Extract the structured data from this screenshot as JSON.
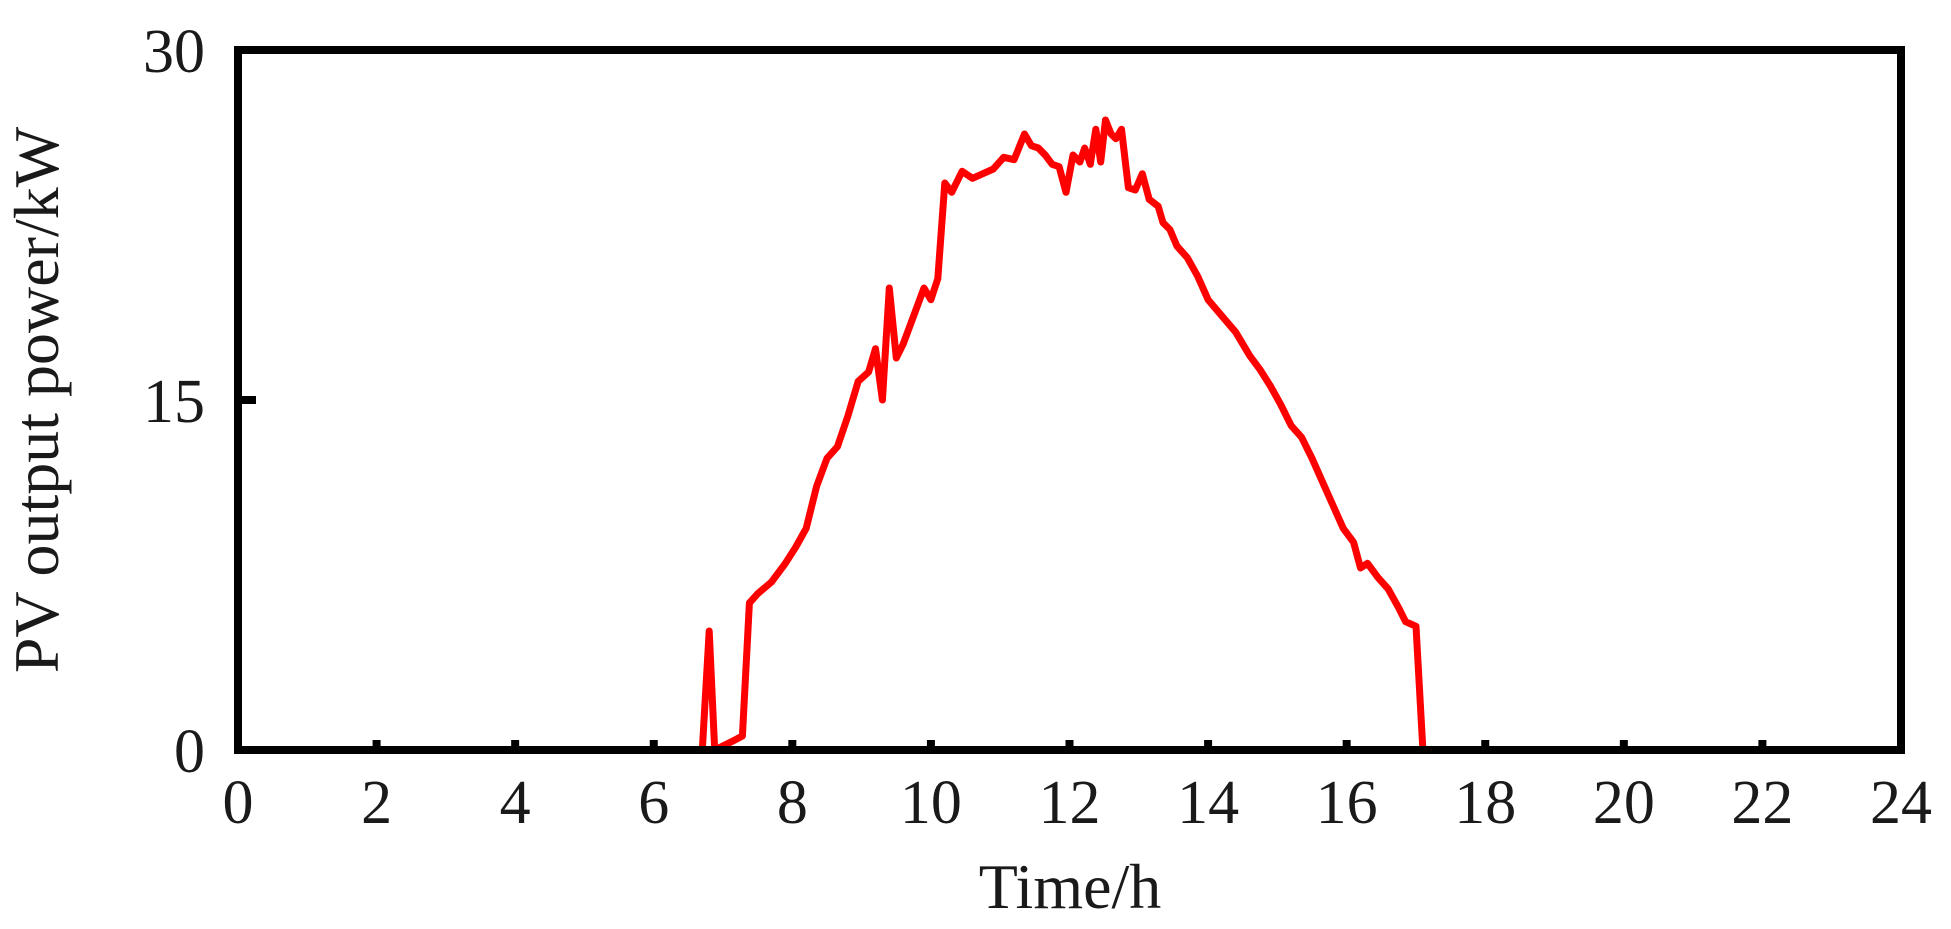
{
  "chart_data": {
    "type": "line",
    "title": "",
    "xlabel": "Time/h",
    "ylabel": "PV output power/kW",
    "xlim": [
      0,
      24
    ],
    "ylim": [
      0,
      30
    ],
    "xticks": [
      "0",
      "2",
      "4",
      "6",
      "8",
      "10",
      "12",
      "14",
      "16",
      "18",
      "20",
      "22",
      "24"
    ],
    "yticks": [
      "0",
      "15",
      "30"
    ],
    "grid": false,
    "legend": "none",
    "line_color": "#ff0000",
    "axis_color": "#000000",
    "series": [
      {
        "x": [
          0,
          6.7,
          6.8,
          6.88,
          7.15,
          7.28,
          7.38,
          7.5,
          7.7,
          7.9,
          8.05,
          8.2,
          8.35,
          8.5,
          8.65,
          8.8,
          8.95,
          9.1,
          9.2,
          9.3,
          9.4,
          9.5,
          9.6,
          9.75,
          9.9,
          10.0,
          10.1,
          10.2,
          10.3,
          10.45,
          10.6,
          10.75,
          10.9,
          11.05,
          11.2,
          11.35,
          11.45,
          11.55,
          11.65,
          11.75,
          11.85,
          11.95,
          12.05,
          12.15,
          12.22,
          12.3,
          12.38,
          12.45,
          12.52,
          12.6,
          12.67,
          12.75,
          12.85,
          12.95,
          13.05,
          13.15,
          13.28,
          13.35,
          13.45,
          13.55,
          13.7,
          13.85,
          14.0,
          14.2,
          14.4,
          14.6,
          14.75,
          14.9,
          15.05,
          15.2,
          15.35,
          15.5,
          15.65,
          15.8,
          15.95,
          16.1,
          16.2,
          16.3,
          16.45,
          16.6,
          16.75,
          16.85,
          17.0,
          17.1,
          24
        ],
        "y": [
          0,
          0,
          5.1,
          0,
          0.4,
          0.6,
          6.3,
          6.7,
          7.2,
          8.0,
          8.7,
          9.5,
          11.3,
          12.5,
          13.0,
          14.3,
          15.8,
          16.2,
          17.2,
          15.0,
          19.8,
          16.8,
          17.4,
          18.6,
          19.8,
          19.3,
          20.2,
          24.3,
          23.9,
          24.8,
          24.5,
          24.7,
          24.9,
          25.4,
          25.3,
          26.4,
          25.9,
          25.8,
          25.5,
          25.1,
          25.0,
          23.9,
          25.5,
          25.2,
          25.8,
          25.1,
          26.6,
          25.2,
          27.0,
          26.4,
          26.2,
          26.6,
          24.1,
          24.0,
          24.7,
          23.6,
          23.3,
          22.6,
          22.3,
          21.6,
          21.1,
          20.3,
          19.3,
          18.6,
          17.9,
          16.9,
          16.3,
          15.6,
          14.8,
          13.9,
          13.4,
          12.5,
          11.5,
          10.5,
          9.5,
          8.9,
          7.8,
          8.0,
          7.4,
          6.9,
          6.1,
          5.5,
          5.3,
          0,
          0
        ]
      }
    ]
  }
}
